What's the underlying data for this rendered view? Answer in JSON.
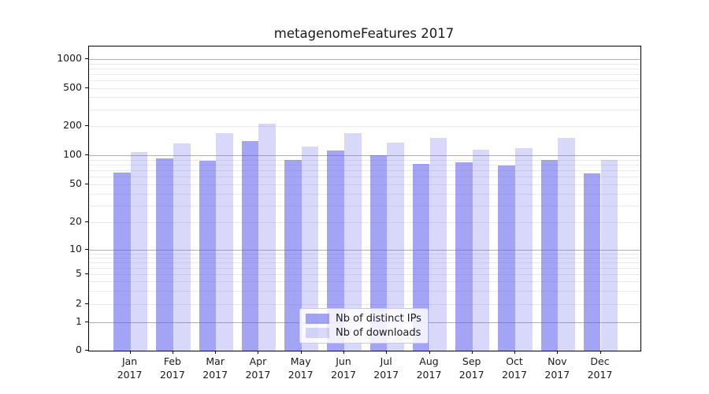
{
  "title": "metagenomeFeatures 2017",
  "chart_data": {
    "type": "bar",
    "title": "metagenomeFeatures 2017",
    "xlabel": "",
    "ylabel": "",
    "yscale": "log (linear segment below 1, zero baseline shown)",
    "ylim": [
      0,
      1350
    ],
    "grid": true,
    "legend_position": "lower center (inside plot, offset left)",
    "categories": [
      "Jan 2017",
      "Feb 2017",
      "Mar 2017",
      "Apr 2017",
      "May 2017",
      "Jun 2017",
      "Jul 2017",
      "Aug 2017",
      "Sep 2017",
      "Oct 2017",
      "Nov 2017",
      "Dec 2017"
    ],
    "series": [
      {
        "name": "Nb of distinct IPs",
        "color": "#a6a6f3",
        "rgba": "rgba(93,93,235,0.56)",
        "values": [
          66,
          92,
          87,
          140,
          89,
          112,
          100,
          81,
          84,
          79,
          90,
          65
        ]
      },
      {
        "name": "Nb of downloads",
        "color": "#dcdcfa",
        "rgba": "rgba(93,93,235,0.24)",
        "values": [
          107,
          133,
          168,
          210,
          122,
          167,
          136,
          151,
          113,
          118,
          152,
          90
        ]
      }
    ],
    "y_ticks": [
      0,
      1,
      2,
      5,
      10,
      20,
      50,
      100,
      200,
      500,
      1000
    ],
    "y_major_gridlines": [
      1,
      10,
      100,
      1000
    ],
    "y_minor_gridlines": [
      2,
      3,
      4,
      5,
      6,
      7,
      8,
      9,
      20,
      30,
      40,
      50,
      60,
      70,
      80,
      90,
      200,
      300,
      400,
      500,
      600,
      700,
      800,
      900
    ]
  },
  "colors": {
    "bar_distinct_ips": "rgba(93,93,235,0.56)",
    "bar_downloads": "rgba(93,93,235,0.24)",
    "grid_major": "#b0b0b0",
    "grid_minor": "#e9e9e9",
    "spine": "#000000",
    "text": "#1a1a1a",
    "legend_bg": "rgba(255,255,255,0.82)",
    "legend_border": "#cccccc"
  }
}
